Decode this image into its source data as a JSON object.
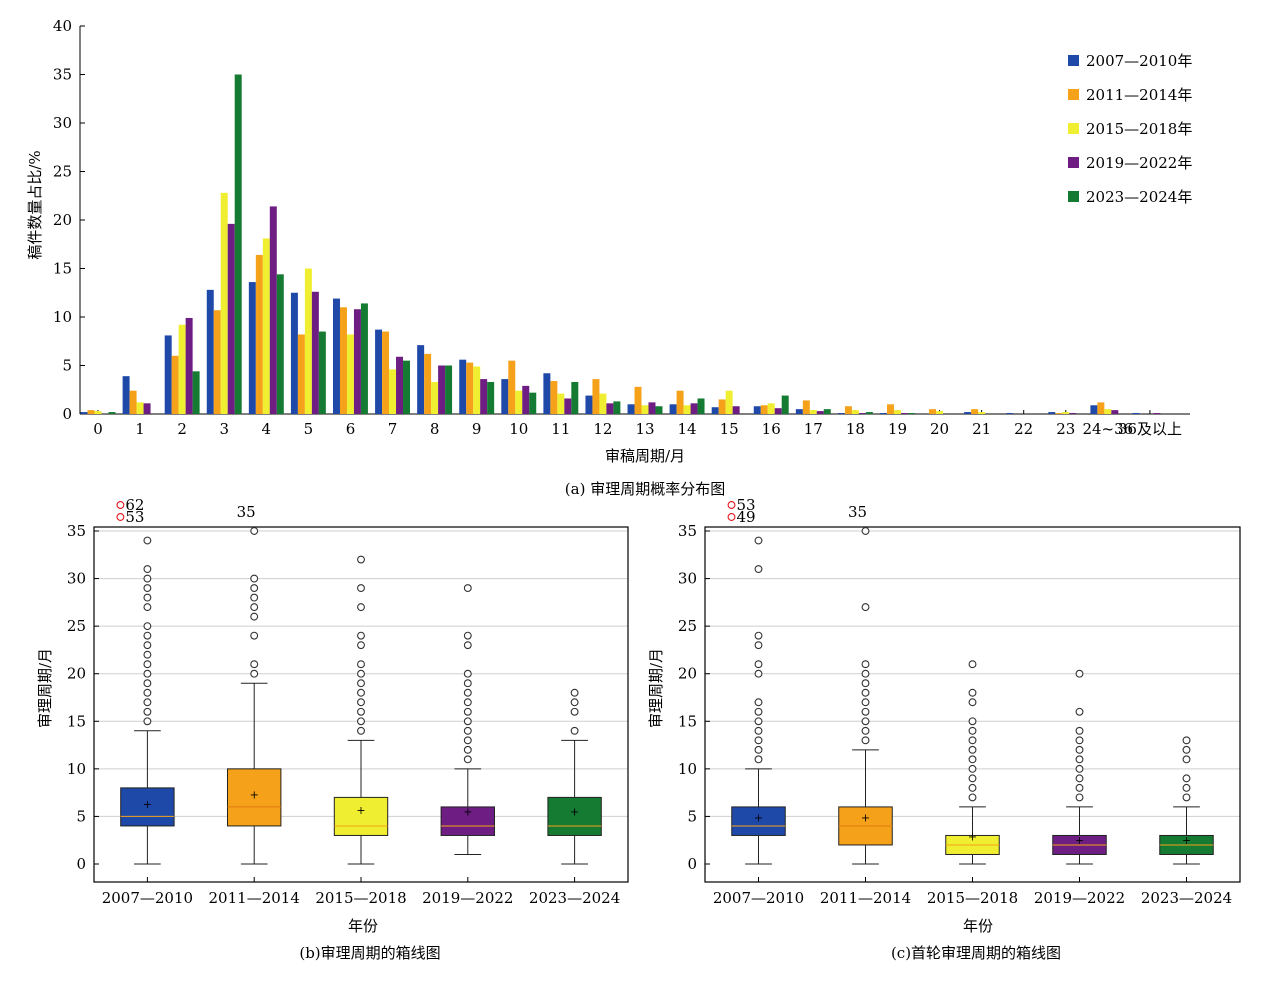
{
  "colors": {
    "s2007": "#1f49a8",
    "s2011": "#f5a21a",
    "s2015": "#f0ee30",
    "s2019": "#6e1e82",
    "s2023": "#157a32",
    "outlier_label": "#e5141c",
    "median_line": "#f5a21a",
    "median_line_alt": "#f5a21a"
  },
  "chart_data": [
    {
      "type": "bar",
      "caption": "(a) 审理周期概率分布图",
      "xlabel": "审稿周期/月",
      "ylabel": "稿件数量占比/%",
      "ylim": [
        0,
        40
      ],
      "yticks": [
        0,
        5,
        10,
        15,
        20,
        25,
        30,
        35,
        40
      ],
      "legend_position": "top-right",
      "categories": [
        "0",
        "1",
        "2",
        "3",
        "4",
        "5",
        "6",
        "7",
        "8",
        "9",
        "10",
        "11",
        "12",
        "13",
        "14",
        "15",
        "16",
        "17",
        "18",
        "19",
        "20",
        "21",
        "22",
        "23",
        "24~36",
        "36及以上"
      ],
      "series": [
        {
          "name": "2007—2010年",
          "color_key": "s2007",
          "values": [
            0.2,
            3.9,
            8.1,
            12.8,
            13.6,
            12.5,
            11.9,
            8.7,
            7.1,
            5.6,
            3.6,
            4.2,
            1.9,
            1.0,
            1.0,
            0.7,
            0.8,
            0.5,
            0.1,
            0.1,
            0.0,
            0.2,
            0.1,
            0.2,
            0.9,
            0.1
          ]
        },
        {
          "name": "2011—2014年",
          "color_key": "s2011",
          "values": [
            0.4,
            2.4,
            6.0,
            10.7,
            16.4,
            8.2,
            11.0,
            8.5,
            6.2,
            5.3,
            5.5,
            3.4,
            3.6,
            2.8,
            2.4,
            1.5,
            0.9,
            1.4,
            0.8,
            1.0,
            0.5,
            0.5,
            0.0,
            0.1,
            1.2,
            0.0
          ]
        },
        {
          "name": "2015—2018年",
          "color_key": "s2015",
          "values": [
            0.3,
            1.2,
            9.2,
            22.8,
            18.1,
            15.0,
            8.2,
            4.6,
            3.3,
            4.9,
            2.4,
            2.1,
            2.1,
            0.9,
            0.9,
            2.4,
            1.1,
            0.4,
            0.4,
            0.4,
            0.3,
            0.2,
            0.0,
            0.2,
            0.5,
            0.0
          ]
        },
        {
          "name": "2019—2022年",
          "color_key": "s2019",
          "values": [
            0.0,
            1.1,
            9.9,
            19.6,
            21.4,
            12.6,
            10.8,
            5.9,
            5.0,
            3.6,
            2.9,
            1.6,
            1.1,
            1.2,
            1.1,
            0.8,
            0.6,
            0.3,
            0.1,
            0.1,
            0.0,
            0.0,
            0.0,
            0.1,
            0.4,
            0.1
          ]
        },
        {
          "name": "2023—2024年",
          "color_key": "s2023",
          "values": [
            0.2,
            0.0,
            4.4,
            35.0,
            14.4,
            8.5,
            11.4,
            5.5,
            5.0,
            3.3,
            2.2,
            3.3,
            1.3,
            0.8,
            1.6,
            0.0,
            1.9,
            0.5,
            0.2,
            0.1,
            0.0,
            0.0,
            0.0,
            0.0,
            0.0,
            0.0
          ]
        }
      ]
    },
    {
      "type": "box",
      "caption": "(b)审理周期的箱线图",
      "xlabel": "年份",
      "ylabel": "审理周期/月",
      "ylim": [
        -2,
        35
      ],
      "yticks": [
        0,
        5,
        10,
        15,
        20,
        25,
        30,
        35
      ],
      "grid": true,
      "categories": [
        "2007—2010",
        "2011—2014",
        "2015—2018",
        "2019—2022",
        "2023—2024"
      ],
      "boxes": [
        {
          "color_key": "s2007",
          "whisker_low": 0,
          "q1": 4,
          "median": 5,
          "q3": 8,
          "whisker_high": 14,
          "mean": 6.3,
          "outliers": [
            15,
            16,
            17,
            18,
            19,
            20,
            21,
            22,
            23,
            24,
            25,
            27,
            28,
            29,
            30,
            31,
            34
          ],
          "outliers_labeled": [
            62,
            53
          ]
        },
        {
          "color_key": "s2011",
          "whisker_low": 0,
          "q1": 4,
          "median": 6,
          "q3": 10,
          "whisker_high": 19,
          "mean": 7.3,
          "outliers": [
            20,
            21,
            24,
            26,
            27,
            28,
            29,
            30,
            35
          ],
          "outliers_labeled": [
            35
          ]
        },
        {
          "color_key": "s2015",
          "whisker_low": 0,
          "q1": 3,
          "median": 4,
          "q3": 7,
          "whisker_high": 13,
          "mean": 5.7,
          "outliers": [
            14,
            15,
            16,
            17,
            18,
            19,
            20,
            21,
            23,
            24,
            27,
            29,
            32
          ],
          "outliers_labeled": []
        },
        {
          "color_key": "s2019",
          "whisker_low": 1,
          "q1": 3,
          "median": 4,
          "q3": 6,
          "whisker_high": 10,
          "mean": 5.5,
          "outliers": [
            11,
            12,
            13,
            14,
            15,
            16,
            17,
            18,
            19,
            20,
            23,
            24,
            29
          ],
          "outliers_labeled": []
        },
        {
          "color_key": "s2023",
          "whisker_low": 0,
          "q1": 3,
          "median": 4,
          "q3": 7,
          "whisker_high": 13,
          "mean": 5.5,
          "outliers": [
            14,
            16,
            17,
            18
          ],
          "outliers_labeled": []
        }
      ]
    },
    {
      "type": "box",
      "caption": "(c)首轮审理周期的箱线图",
      "xlabel": "年份",
      "ylabel": "审理周期/月",
      "ylim": [
        -2,
        35
      ],
      "yticks": [
        0,
        5,
        10,
        15,
        20,
        25,
        30,
        35
      ],
      "grid": true,
      "categories": [
        "2007—2010",
        "2011—2014",
        "2015—2018",
        "2019—2022",
        "2023—2024"
      ],
      "boxes": [
        {
          "color_key": "s2007",
          "whisker_low": 0,
          "q1": 3,
          "median": 4,
          "q3": 6,
          "whisker_high": 10,
          "mean": 4.9,
          "outliers": [
            11,
            12,
            13,
            14,
            15,
            16,
            17,
            20,
            21,
            23,
            24,
            31,
            34
          ],
          "outliers_labeled": [
            53,
            49
          ]
        },
        {
          "color_key": "s2011",
          "whisker_low": 0,
          "q1": 2,
          "median": 4,
          "q3": 6,
          "whisker_high": 12,
          "mean": 4.9,
          "outliers": [
            13,
            14,
            15,
            16,
            17,
            18,
            19,
            20,
            21,
            27,
            35
          ],
          "outliers_labeled": [
            35
          ]
        },
        {
          "color_key": "s2015",
          "whisker_low": 0,
          "q1": 1,
          "median": 2,
          "q3": 3,
          "whisker_high": 6,
          "mean": 2.9,
          "outliers": [
            7,
            8,
            9,
            10,
            11,
            12,
            13,
            14,
            15,
            17,
            18,
            21
          ],
          "outliers_labeled": []
        },
        {
          "color_key": "s2019",
          "whisker_low": 0,
          "q1": 1,
          "median": 2,
          "q3": 3,
          "whisker_high": 6,
          "mean": 2.5,
          "outliers": [
            7,
            8,
            9,
            10,
            11,
            12,
            13,
            14,
            16,
            20
          ],
          "outliers_labeled": []
        },
        {
          "color_key": "s2023",
          "whisker_low": 0,
          "q1": 1,
          "median": 2,
          "q3": 3,
          "whisker_high": 6,
          "mean": 2.5,
          "outliers": [
            7,
            8,
            9,
            11,
            12,
            13
          ],
          "outliers_labeled": []
        }
      ]
    }
  ]
}
